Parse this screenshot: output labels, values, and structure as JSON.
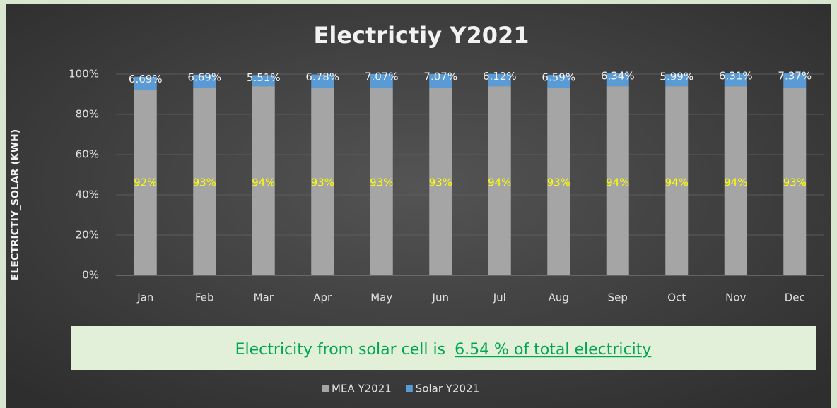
{
  "chart_data": {
    "type": "stacked_bar",
    "title": "Electrictiy Y2021",
    "y_label": "ELECTRICTIY_SOLAR (KWH)",
    "categories": [
      "Jan",
      "Feb",
      "Mar",
      "Apr",
      "May",
      "Jun",
      "Jul",
      "Aug",
      "Sep",
      "Oct",
      "Nov",
      "Dec"
    ],
    "series": [
      {
        "name": "MEA Y2021",
        "color": "#a5a5a5",
        "values": [
          92,
          93,
          94,
          93,
          93,
          93,
          94,
          93,
          94,
          94,
          94,
          93
        ],
        "value_labels": [
          "92%",
          "93%",
          "94%",
          "93%",
          "93%",
          "93%",
          "94%",
          "93%",
          "94%",
          "94%",
          "94%",
          "93%"
        ]
      },
      {
        "name": "Solar Y2021",
        "color": "#5b9bd5",
        "values": [
          6.69,
          6.69,
          5.51,
          6.78,
          7.07,
          7.07,
          6.12,
          6.59,
          6.34,
          5.99,
          6.31,
          7.37
        ],
        "value_labels": [
          "6.69%",
          "6.69%",
          "5.51%",
          "6.78%",
          "7.07%",
          "7.07%",
          "6.12%",
          "6.59%",
          "6.34%",
          "5.99%",
          "6.31%",
          "7.37%"
        ]
      }
    ],
    "ylim": [
      0,
      100
    ],
    "yticks": [
      {
        "value": 0,
        "label": "0%"
      },
      {
        "value": 20,
        "label": "20%"
      },
      {
        "value": 40,
        "label": "40%"
      },
      {
        "value": 60,
        "label": "60%"
      },
      {
        "value": 80,
        "label": "80%"
      },
      {
        "value": 100,
        "label": "100%"
      }
    ],
    "grid": true,
    "legend": "bottom",
    "annotation": {
      "text": "Electricity from solar cell is",
      "highlight": "6.54 % of total electricity"
    }
  }
}
